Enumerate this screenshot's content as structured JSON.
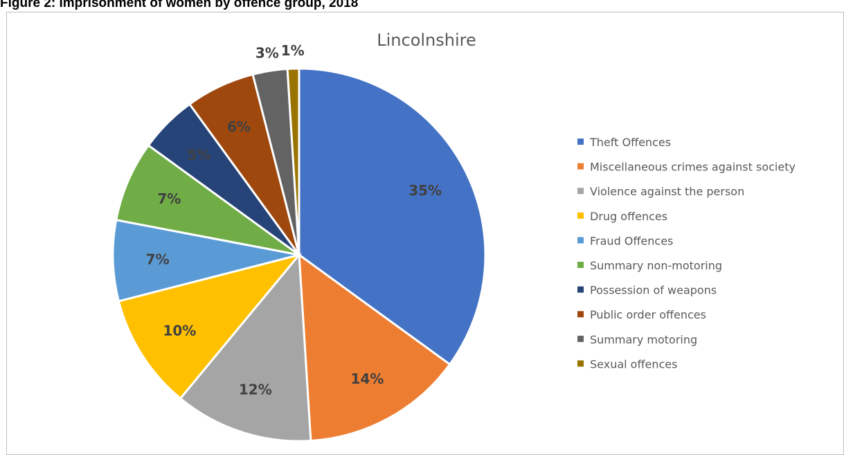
{
  "figure_title": "Figure 2: Imprisonment of women by offence group, 2018",
  "chart_data": {
    "type": "pie",
    "title": "Lincolnshire",
    "legend_position": "right",
    "slices": [
      {
        "name": "Theft Offences",
        "value": 35,
        "label": "35%",
        "color": "#4472C4"
      },
      {
        "name": "Miscellaneous crimes against society",
        "value": 14,
        "label": "14%",
        "color": "#ED7D31"
      },
      {
        "name": "Violence against the person",
        "value": 12,
        "label": "12%",
        "color": "#A5A5A5"
      },
      {
        "name": "Drug offences",
        "value": 10,
        "label": "10%",
        "color": "#FFC000"
      },
      {
        "name": "Fraud Offences",
        "value": 7,
        "label": "7%",
        "color": "#5B9BD5"
      },
      {
        "name": "Summary non-motoring",
        "value": 7,
        "label": "7%",
        "color": "#70AD47"
      },
      {
        "name": "Possession of weapons",
        "value": 5,
        "label": "5%",
        "color": "#264478"
      },
      {
        "name": "Public order offences",
        "value": 6,
        "label": "6%",
        "color": "#9E480E"
      },
      {
        "name": "Summary motoring",
        "value": 3,
        "label": "3%",
        "color": "#636363"
      },
      {
        "name": "Sexual offences",
        "value": 1,
        "label": "1%",
        "color": "#997300"
      }
    ]
  }
}
